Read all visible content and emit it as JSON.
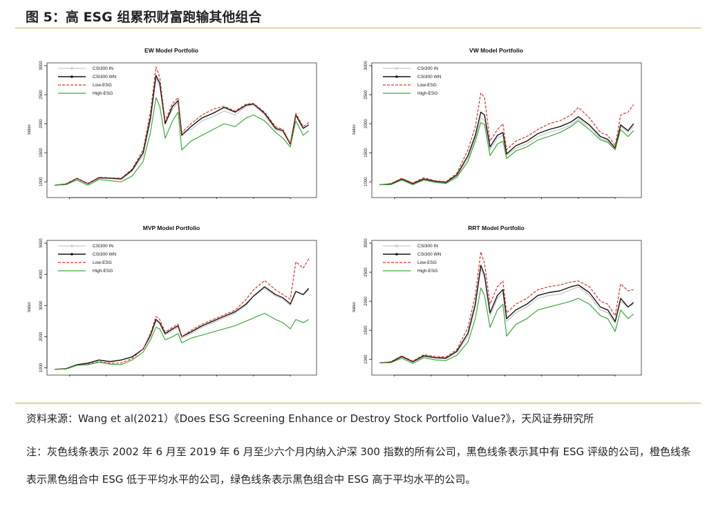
{
  "header": {
    "title": "图 5：高 ESG 组累积财富跑输其他组合"
  },
  "legend_labels": [
    "CSI300 IN",
    "CSI300 WN",
    "Low-ESG",
    "High-ESG"
  ],
  "colors": {
    "in": "#c8c8c8",
    "wn": "#111111",
    "low": "#e0322a",
    "high": "#3aa83a",
    "rule": "#c9a45c"
  },
  "chart_data": [
    {
      "type": "line",
      "title": "EW Model Portfolio",
      "ylabel": "Index",
      "xlabel": "",
      "ylim": [
        800,
        3000
      ],
      "yticks": [
        1000,
        1500,
        2000,
        2500,
        3000
      ],
      "xlim": [
        2012.5,
        2019.6
      ],
      "xticks": [
        2013,
        2014,
        2015,
        2016,
        2017,
        2018,
        2019
      ],
      "x": [
        2012.6,
        2012.9,
        2013.2,
        2013.5,
        2013.8,
        2014.1,
        2014.4,
        2014.7,
        2015.0,
        2015.2,
        2015.35,
        2015.45,
        2015.6,
        2015.8,
        2015.95,
        2016.05,
        2016.3,
        2016.6,
        2016.9,
        2017.2,
        2017.5,
        2017.8,
        2018.0,
        2018.3,
        2018.6,
        2018.8,
        2019.0,
        2019.15,
        2019.35,
        2019.5
      ],
      "series": [
        {
          "name": "CSI300 IN",
          "values": [
            940,
            960,
            1050,
            960,
            1060,
            1060,
            1040,
            1180,
            1450,
            2050,
            2780,
            2650,
            2000,
            2250,
            2370,
            1850,
            1900,
            2050,
            2120,
            2220,
            2150,
            2300,
            2320,
            2150,
            1900,
            1850,
            1640,
            2150,
            1920,
            1980
          ]
        },
        {
          "name": "CSI300 WN",
          "values": [
            940,
            960,
            1060,
            970,
            1070,
            1060,
            1050,
            1200,
            1500,
            2100,
            2830,
            2700,
            2000,
            2300,
            2400,
            1800,
            1950,
            2100,
            2180,
            2280,
            2200,
            2320,
            2340,
            2180,
            1920,
            1880,
            1650,
            2150,
            1920,
            1980
          ]
        },
        {
          "name": "Low-ESG",
          "values": [
            940,
            960,
            1060,
            970,
            1080,
            1070,
            1060,
            1220,
            1550,
            2200,
            2980,
            2800,
            2050,
            2350,
            2450,
            1850,
            2000,
            2150,
            2250,
            2300,
            2220,
            2340,
            2350,
            2200,
            1950,
            1900,
            1660,
            2180,
            1950,
            2020
          ]
        },
        {
          "name": "High-ESG",
          "values": [
            940,
            950,
            1030,
            940,
            1040,
            1020,
            1000,
            1100,
            1350,
            1850,
            2450,
            2300,
            1750,
            2050,
            2200,
            1550,
            1700,
            1800,
            1900,
            2000,
            1950,
            2100,
            2150,
            2050,
            1850,
            1750,
            1600,
            2050,
            1800,
            1880
          ]
        }
      ]
    },
    {
      "type": "line",
      "title": "VW Model Portfolio",
      "ylabel": "Index",
      "xlabel": "",
      "ylim": [
        800,
        3000
      ],
      "yticks": [
        1000,
        1500,
        2000,
        2500,
        3000
      ],
      "xlim": [
        2012.5,
        2019.6
      ],
      "xticks": [
        2013,
        2014,
        2015,
        2016,
        2017,
        2018,
        2019
      ],
      "x": [
        2012.6,
        2012.9,
        2013.2,
        2013.5,
        2013.8,
        2014.1,
        2014.4,
        2014.7,
        2015.0,
        2015.2,
        2015.35,
        2015.45,
        2015.6,
        2015.8,
        2015.95,
        2016.05,
        2016.3,
        2016.6,
        2016.9,
        2017.2,
        2017.5,
        2017.8,
        2018.0,
        2018.3,
        2018.6,
        2018.8,
        2019.0,
        2019.15,
        2019.35,
        2019.5
      ],
      "series": [
        {
          "name": "CSI300 IN",
          "values": [
            950,
            960,
            1040,
            960,
            1040,
            1000,
            980,
            1100,
            1400,
            1750,
            2100,
            2050,
            1550,
            1750,
            1800,
            1450,
            1580,
            1650,
            1780,
            1850,
            1900,
            1980,
            2080,
            1950,
            1750,
            1700,
            1560,
            1950,
            1850,
            1960
          ]
        },
        {
          "name": "CSI300 WN",
          "values": [
            950,
            960,
            1050,
            970,
            1050,
            1010,
            990,
            1120,
            1450,
            1800,
            2200,
            2150,
            1600,
            1800,
            1850,
            1480,
            1620,
            1700,
            1830,
            1900,
            1950,
            2030,
            2120,
            1980,
            1780,
            1730,
            1580,
            1980,
            1880,
            2000
          ]
        },
        {
          "name": "Low-ESG",
          "values": [
            950,
            970,
            1060,
            980,
            1070,
            1020,
            1000,
            1150,
            1550,
            1950,
            2530,
            2450,
            1700,
            1900,
            2000,
            1550,
            1700,
            1780,
            1900,
            2000,
            2050,
            2150,
            2280,
            2100,
            1850,
            1800,
            1620,
            2150,
            2200,
            2330
          ]
        },
        {
          "name": "High-ESG",
          "values": [
            950,
            950,
            1030,
            950,
            1030,
            990,
            970,
            1080,
            1350,
            1700,
            2020,
            1980,
            1450,
            1650,
            1700,
            1400,
            1530,
            1600,
            1720,
            1780,
            1850,
            1950,
            2050,
            1900,
            1720,
            1680,
            1550,
            1900,
            1780,
            1880
          ]
        }
      ]
    },
    {
      "type": "line",
      "title": "MVP Model Portfolio",
      "ylabel": "Index",
      "xlabel": "",
      "ylim": [
        900,
        5000
      ],
      "yticks": [
        1000,
        2000,
        3000,
        4000,
        5000
      ],
      "xlim": [
        2012.5,
        2019.6
      ],
      "xticks": [
        2013,
        2014,
        2015,
        2016,
        2017,
        2018,
        2019
      ],
      "x": [
        2012.6,
        2012.9,
        2013.2,
        2013.5,
        2013.8,
        2014.1,
        2014.4,
        2014.7,
        2015.0,
        2015.2,
        2015.35,
        2015.45,
        2015.6,
        2015.8,
        2015.95,
        2016.05,
        2016.3,
        2016.6,
        2016.9,
        2017.2,
        2017.5,
        2017.8,
        2018.0,
        2018.3,
        2018.6,
        2018.8,
        2019.0,
        2019.15,
        2019.35,
        2019.5
      ],
      "series": [
        {
          "name": "CSI300 IN",
          "values": [
            950,
            970,
            1100,
            1150,
            1250,
            1200,
            1250,
            1350,
            1600,
            2000,
            2500,
            2400,
            2050,
            2200,
            2300,
            1950,
            2100,
            2300,
            2450,
            2600,
            2750,
            3000,
            3300,
            3550,
            3300,
            3200,
            3000,
            3450,
            3350,
            3500
          ]
        },
        {
          "name": "CSI300 WN",
          "values": [
            950,
            970,
            1100,
            1150,
            1250,
            1200,
            1250,
            1350,
            1600,
            2050,
            2550,
            2450,
            2100,
            2250,
            2350,
            2000,
            2150,
            2350,
            2500,
            2650,
            2800,
            3050,
            3300,
            3600,
            3350,
            3250,
            3050,
            3450,
            3350,
            3550
          ]
        },
        {
          "name": "Low-ESG",
          "values": [
            950,
            960,
            1080,
            1120,
            1200,
            1150,
            1150,
            1300,
            1600,
            2100,
            2650,
            2550,
            2150,
            2300,
            2400,
            2000,
            2200,
            2400,
            2550,
            2700,
            2850,
            3200,
            3500,
            3800,
            3500,
            3350,
            3200,
            4400,
            4200,
            4500
          ]
        },
        {
          "name": "High-ESG",
          "values": [
            950,
            960,
            1080,
            1100,
            1180,
            1120,
            1100,
            1250,
            1500,
            1900,
            2300,
            2250,
            1900,
            2000,
            2100,
            1800,
            1950,
            2050,
            2150,
            2250,
            2350,
            2500,
            2600,
            2750,
            2550,
            2450,
            2250,
            2550,
            2450,
            2550
          ]
        }
      ]
    },
    {
      "type": "line",
      "title": "RRT Model Portfolio",
      "ylabel": "Index",
      "xlabel": "",
      "ylim": [
        800,
        3000
      ],
      "yticks": [
        1000,
        1500,
        2000,
        2500,
        3000
      ],
      "xlim": [
        2012.5,
        2019.6
      ],
      "xticks": [
        2013,
        2014,
        2015,
        2016,
        2017,
        2018,
        2019
      ],
      "x": [
        2012.6,
        2012.9,
        2013.2,
        2013.5,
        2013.8,
        2014.1,
        2014.4,
        2014.7,
        2015.0,
        2015.2,
        2015.35,
        2015.45,
        2015.6,
        2015.8,
        2015.95,
        2016.05,
        2016.3,
        2016.6,
        2016.9,
        2017.2,
        2017.5,
        2017.8,
        2018.0,
        2018.3,
        2018.6,
        2018.8,
        2019.0,
        2019.15,
        2019.35,
        2019.5
      ],
      "series": [
        {
          "name": "CSI300 IN",
          "values": [
            940,
            950,
            1040,
            950,
            1050,
            1020,
            1010,
            1120,
            1400,
            1900,
            2550,
            2400,
            1750,
            2050,
            2150,
            1650,
            1800,
            1900,
            2050,
            2100,
            2120,
            2200,
            2250,
            2100,
            1850,
            1800,
            1620,
            2000,
            1900,
            1950
          ]
        },
        {
          "name": "CSI300 WN",
          "values": [
            940,
            950,
            1050,
            960,
            1060,
            1030,
            1020,
            1140,
            1450,
            1950,
            2620,
            2450,
            1800,
            2100,
            2200,
            1700,
            1850,
            1950,
            2100,
            2150,
            2180,
            2250,
            2280,
            2150,
            1900,
            1850,
            1650,
            2050,
            1900,
            1980
          ]
        },
        {
          "name": "Low-ESG",
          "values": [
            940,
            960,
            1060,
            970,
            1080,
            1050,
            1040,
            1170,
            1550,
            2100,
            2850,
            2650,
            1950,
            2250,
            2350,
            1800,
            1950,
            2050,
            2200,
            2250,
            2280,
            2330,
            2350,
            2250,
            2000,
            1950,
            1750,
            2300,
            2180,
            2200
          ]
        },
        {
          "name": "High-ESG",
          "values": [
            940,
            940,
            1020,
            930,
            1030,
            990,
            980,
            1070,
            1300,
            1700,
            2230,
            2100,
            1550,
            1850,
            1950,
            1400,
            1600,
            1700,
            1850,
            1900,
            1950,
            2000,
            2050,
            1950,
            1750,
            1700,
            1480,
            1850,
            1700,
            1780
          ]
        }
      ]
    }
  ],
  "footer": {
    "source": "资料来源：Wang et al(2021）《Does ESG Screening Enhance or Destroy Stock Portfolio Value?》，天风证券研究所",
    "note": "注：灰色线条表示 2002 年 6 月至 2019 年 6 月至少六个月内纳入沪深 300 指数的所有公司，黑色线条表示其中有 ESG 评级的公司，橙色线条表示黑色组合中 ESG 低于平均水平的公司，绿色线条表示黑色组合中 ESG 高于平均水平的公司。"
  }
}
